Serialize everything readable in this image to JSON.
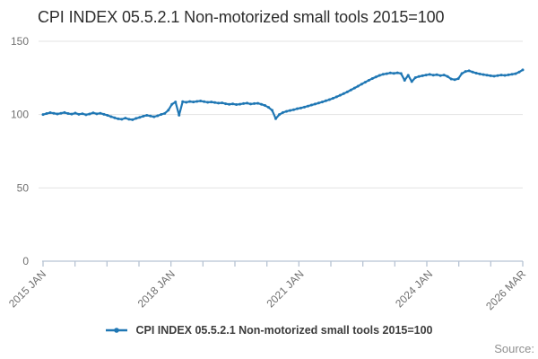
{
  "title": "CPI INDEX 05.5.2.1 Non-motorized small tools 2015=100",
  "legend": {
    "label": "CPI INDEX 05.5.2.1 Non-motorized small tools 2015=100"
  },
  "source_label": "Source:",
  "colors": {
    "line": "#1f77b4",
    "grid": "#e3e3e3",
    "axis": "#b7c3d3",
    "tick_label": "#707070",
    "title_text": "#2e2e2e",
    "legend_text": "#3c3c3c",
    "source_text": "#8f8f8f"
  },
  "chart_data": {
    "type": "line",
    "title": "CPI INDEX 05.5.2.1 Non-motorized small tools 2015=100",
    "xlabel": "",
    "ylabel": "",
    "ylim": [
      0,
      150
    ],
    "y_ticks": [
      0,
      50,
      100,
      150
    ],
    "grid": true,
    "legend_position": "bottom",
    "x_unit": "month",
    "x_range_start": "2015 JAN",
    "x_range_end": "2026 MAR",
    "x_tick_count": 16,
    "x_tick_labels": [
      {
        "label": "2015 JAN",
        "month_index": 0
      },
      {
        "label": "2018 JAN",
        "month_index": 36
      },
      {
        "label": "2021 JAN",
        "month_index": 72
      },
      {
        "label": "2024 JAN",
        "month_index": 108
      },
      {
        "label": "2026 MAR",
        "month_index": 134
      }
    ],
    "series": [
      {
        "name": "CPI INDEX 05.5.2.1 Non-motorized small tools 2015=100",
        "start": "2015-01",
        "end": "2026-03",
        "values": [
          100.0,
          100.7,
          101.3,
          100.9,
          100.4,
          100.9,
          101.4,
          100.7,
          100.3,
          101.0,
          100.2,
          100.6,
          99.9,
          100.4,
          101.2,
          100.5,
          100.9,
          100.2,
          99.5,
          98.6,
          97.8,
          97.1,
          96.8,
          97.6,
          96.8,
          96.5,
          97.4,
          98.1,
          98.9,
          99.5,
          99.0,
          98.5,
          99.2,
          100.1,
          100.8,
          103.0,
          107.0,
          108.6,
          99.6,
          108.8,
          108.4,
          108.9,
          108.6,
          109.0,
          109.3,
          108.8,
          108.4,
          108.6,
          108.2,
          107.8,
          108.0,
          107.4,
          107.0,
          107.3,
          106.8,
          107.1,
          107.5,
          107.8,
          107.2,
          107.5,
          107.7,
          107.0,
          106.2,
          104.9,
          102.9,
          97.2,
          100.0,
          101.4,
          102.2,
          102.8,
          103.3,
          104.0,
          104.5,
          105.1,
          105.8,
          106.5,
          107.2,
          107.9,
          108.6,
          109.4,
          110.2,
          111.1,
          112.1,
          113.2,
          114.3,
          115.5,
          116.8,
          118.1,
          119.4,
          120.8,
          122.1,
          123.4,
          124.6,
          125.7,
          126.7,
          127.5,
          127.9,
          128.4,
          128.1,
          128.5,
          128.0,
          123.4,
          126.8,
          122.5,
          125.2,
          126.0,
          126.5,
          127.0,
          127.4,
          126.9,
          127.2,
          126.6,
          127.0,
          126.0,
          124.3,
          123.8,
          124.5,
          128.0,
          129.4,
          129.9,
          129.0,
          128.3,
          127.7,
          127.3,
          126.9,
          126.5,
          126.2,
          126.6,
          127.0,
          126.7,
          127.1,
          127.5,
          127.9,
          129.0,
          130.5
        ]
      }
    ]
  }
}
